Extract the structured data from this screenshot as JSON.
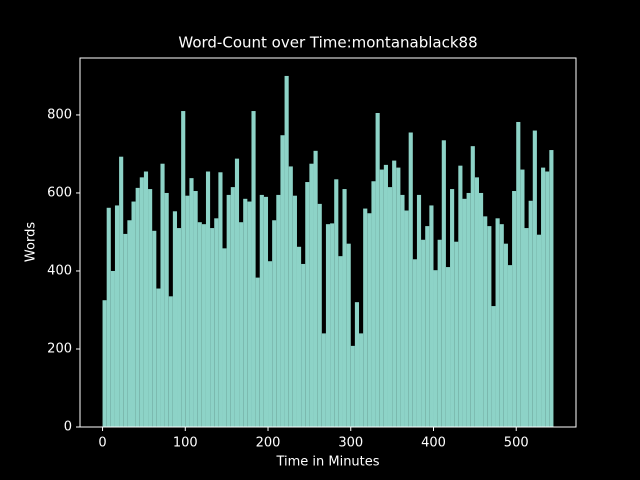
{
  "chart_data": {
    "type": "histogram",
    "title": "Word-Count over Time:montanablack88",
    "x_label": "Time in Minutes",
    "y_label": "Words",
    "color": "#8dd3c7",
    "bins": [
      0,
      5,
      10,
      15,
      20,
      25,
      30,
      35,
      40,
      45,
      50,
      55,
      60,
      65,
      70,
      75,
      80,
      85,
      90,
      95,
      100,
      105,
      110,
      115,
      120,
      125,
      130,
      135,
      140,
      145,
      150,
      155,
      160,
      165,
      170,
      175,
      180,
      185,
      190,
      195,
      200,
      205,
      210,
      215,
      220,
      225,
      230,
      235,
      240,
      245,
      250,
      255,
      260,
      265,
      270,
      275,
      280,
      285,
      290,
      295,
      300,
      305,
      310,
      315,
      320,
      325,
      330,
      335,
      340,
      345,
      350,
      355,
      360,
      365,
      370,
      375,
      380,
      385,
      390,
      395,
      400,
      405,
      410,
      415,
      420,
      425,
      430,
      435,
      440,
      445,
      450,
      455,
      460,
      465,
      470,
      475,
      480,
      485,
      490,
      495,
      500,
      505,
      510,
      515,
      520,
      525,
      530,
      535,
      540,
      545
    ],
    "values": [
      325,
      562,
      400,
      568,
      693,
      495,
      530,
      578,
      613,
      640,
      655,
      610,
      503,
      355,
      675,
      600,
      335,
      553,
      510,
      810,
      593,
      638,
      605,
      525,
      520,
      655,
      510,
      535,
      653,
      458,
      595,
      615,
      688,
      525,
      585,
      578,
      810,
      383,
      595,
      590,
      425,
      530,
      595,
      748,
      900,
      668,
      593,
      462,
      418,
      628,
      675,
      708,
      572,
      240,
      520,
      522,
      635,
      438,
      610,
      470,
      208,
      320,
      240,
      560,
      548,
      630,
      805,
      660,
      672,
      615,
      683,
      665,
      595,
      555,
      755,
      430,
      595,
      480,
      515,
      568,
      402,
      480,
      735,
      410,
      610,
      475,
      670,
      585,
      600,
      720,
      640,
      600,
      540,
      515,
      310,
      535,
      520,
      470,
      415,
      605,
      782,
      660,
      510,
      580,
      760,
      493,
      665,
      655,
      710
    ],
    "xlim": [
      -27.25,
      572.25
    ],
    "xticks": [
      0,
      100,
      200,
      300,
      400,
      500
    ],
    "ylim": [
      0,
      946
    ],
    "yticks": [
      0,
      200,
      400,
      600,
      800
    ]
  }
}
